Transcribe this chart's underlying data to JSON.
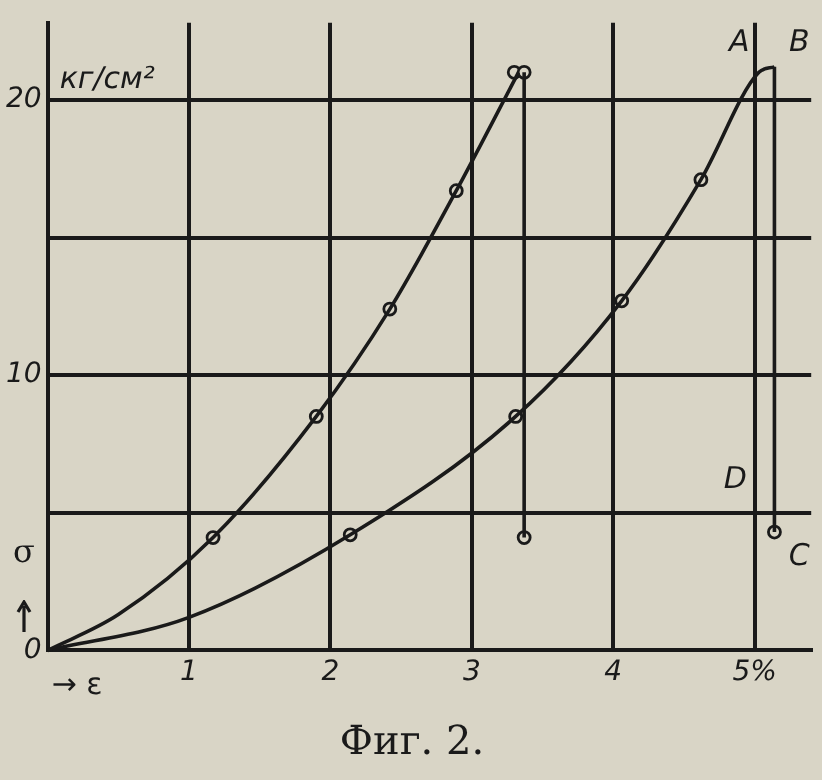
{
  "chart_data": {
    "type": "line",
    "title": "Фиг. 2.",
    "xlabel": "→ ε",
    "ylabel": "σ",
    "annotations": [
      "кг/см²",
      "A",
      "B",
      "D",
      "C"
    ],
    "series": [
      {
        "color": "#1a1a1a",
        "marker": "none",
        "x": [
          0,
          0.5,
          1.17,
          1.9,
          2.42,
          2.89,
          3.33
        ],
        "values": [
          0,
          1.3,
          4.1,
          8.5,
          12.4,
          16.7,
          21
        ]
      },
      {
        "color": "#1a1a1a",
        "marker": "none",
        "x": [
          0,
          1,
          2.14,
          3.31,
          4.06,
          4.62,
          5.03,
          5.14
        ],
        "values": [
          0,
          1.2,
          4.2,
          8.5,
          12.7,
          17.1,
          21,
          21.2
        ]
      },
      {
        "color": "#1a1a1a",
        "marker": "none",
        "x": [
          3.37,
          3.37
        ],
        "values": [
          21,
          4.1
        ]
      },
      {
        "color": "#1a1a1a",
        "marker": "none",
        "x": [
          5.14,
          5.14
        ],
        "values": [
          21.2,
          4.3
        ]
      },
      {
        "type": "scatter",
        "color": "#1a1a1a",
        "marker": "circle",
        "x": [
          1.17,
          1.9,
          2.42,
          2.89,
          3.3,
          3.37,
          3.37,
          2.14,
          3.31,
          4.06,
          4.62,
          5.14
        ],
        "values": [
          4.1,
          8.5,
          12.4,
          16.7,
          21,
          21,
          4.1,
          4.2,
          8.5,
          12.7,
          17.1,
          4.3
        ]
      }
    ],
    "xlim": [
      0,
      5.4
    ],
    "ylim": [
      0,
      22.8
    ],
    "xticks": [
      {
        "value": 0,
        "label": null
      },
      1,
      2,
      3,
      4,
      {
        "value": 5,
        "label": "5%"
      }
    ],
    "yticks": [
      0,
      {
        "value": 5,
        "label": null
      },
      10,
      {
        "value": 15,
        "label": null
      },
      20
    ],
    "grid": true,
    "line_style": "solid"
  }
}
